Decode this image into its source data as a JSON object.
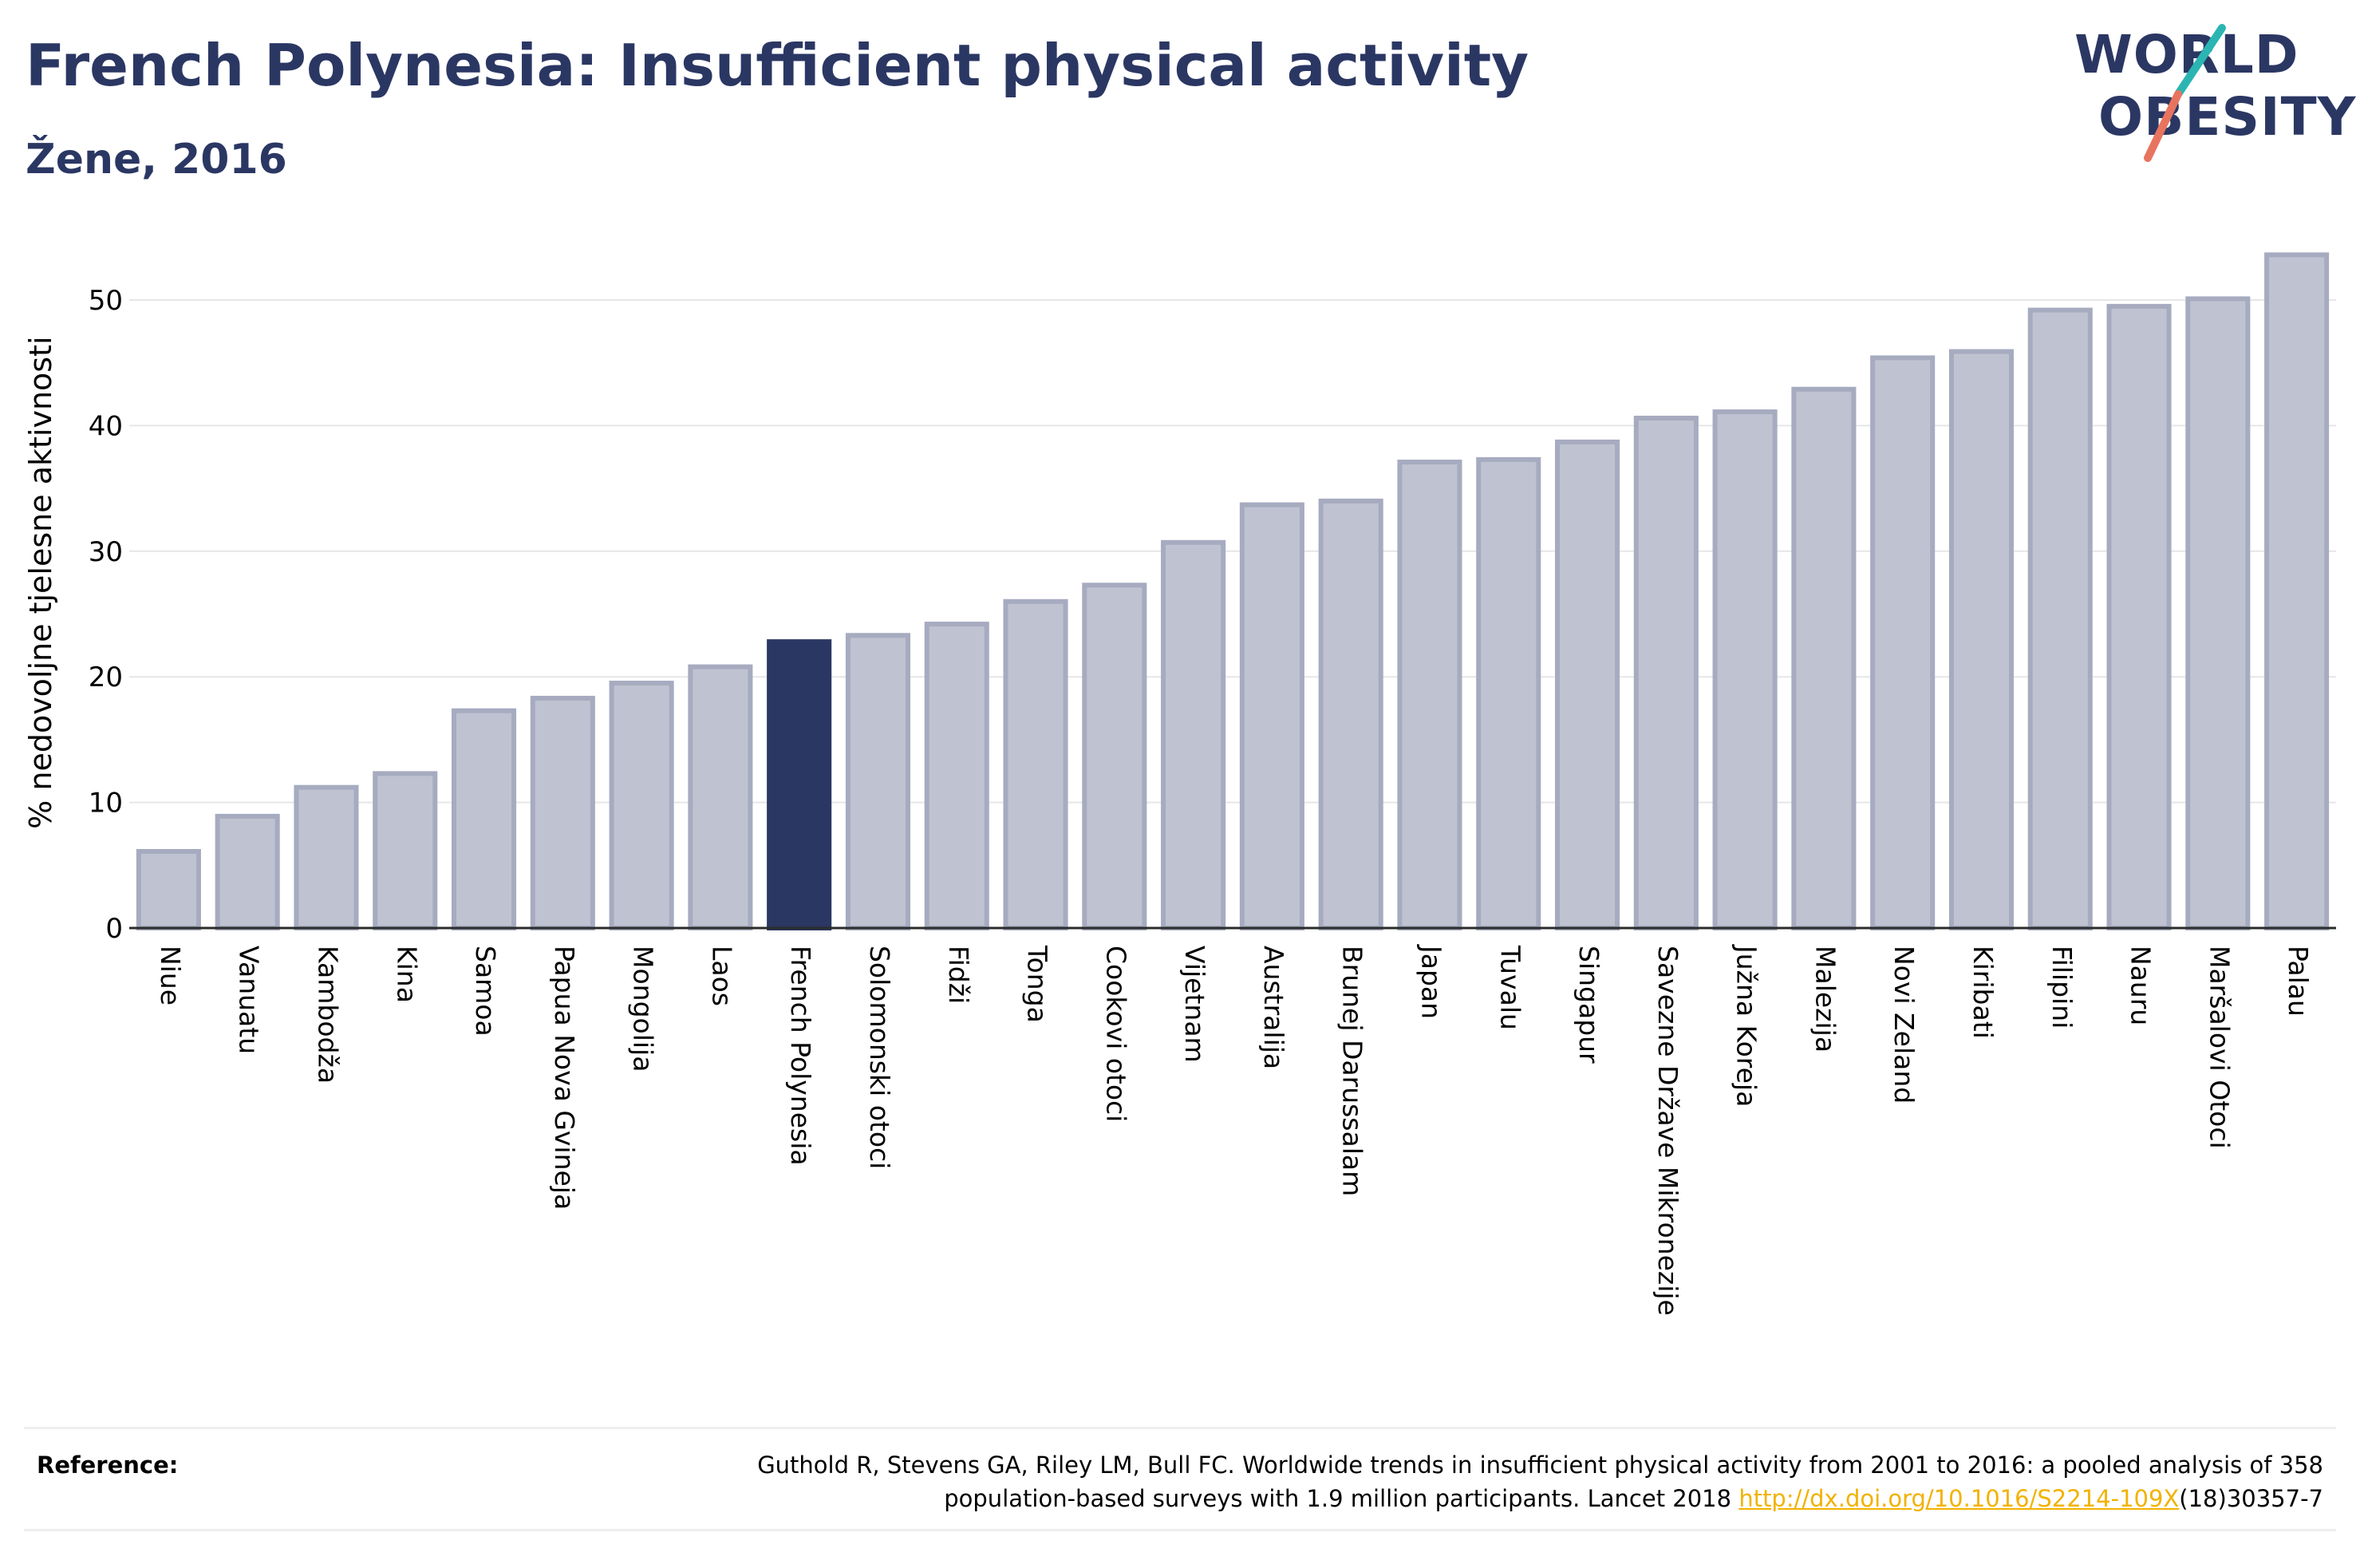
{
  "header": {
    "title": "French Polynesia: Insufficient physical activity",
    "subtitle": "Žene, 2016"
  },
  "logo": {
    "line1": "WORLD",
    "line2": "OBESITY"
  },
  "chart_data": {
    "type": "bar",
    "title": "French Polynesia: Insufficient physical activity",
    "subtitle": "Žene, 2016",
    "ylabel": "% nedovoljne tjelesne aktivnosti",
    "xlabel": "",
    "ylim": [
      0,
      55
    ],
    "yticks": [
      0,
      10,
      20,
      30,
      40,
      50
    ],
    "grid": true,
    "highlight": "French Polynesia",
    "categories": [
      "Niue",
      "Vanuatu",
      "Kambodža",
      "Kina",
      "Samoa",
      "Papua Nova Gvineja",
      "Mongolija",
      "Laos",
      "French Polynesia",
      "Solomonski otoci",
      "Fidži",
      "Tonga",
      "Cookovi otoci",
      "Vijetnam",
      "Australija",
      "Brunej Darussalam",
      "Japan",
      "Tuvalu",
      "Singapur",
      "Savezne Države Mikronezije",
      "Južna Koreja",
      "Malezija",
      "Novi Zeland",
      "Kiribati",
      "Filipini",
      "Nauru",
      "Maršalovi Otoci",
      "Palau"
    ],
    "values": [
      6.1,
      8.9,
      11.2,
      12.3,
      17.3,
      18.3,
      19.5,
      20.8,
      22.8,
      23.3,
      24.2,
      26.0,
      27.3,
      30.7,
      33.7,
      34.0,
      37.1,
      37.3,
      38.7,
      40.6,
      41.1,
      42.9,
      45.4,
      45.9,
      49.2,
      49.5,
      50.1,
      53.6
    ],
    "colors": {
      "bar": "#bfc3d1",
      "bar_border": "#a6abc0",
      "highlight": "#2b3763"
    }
  },
  "reference": {
    "label": "Reference:",
    "text_line1": "Guthold R, Stevens GA, Riley LM, Bull FC. Worldwide trends in insufficient physical activity from 2001 to 2016: a pooled analysis of 358",
    "text_line2_prefix": "population-based surveys with 1.9 million participants. Lancet 2018 ",
    "link": "http://dx.doi.org/10.1016/S2214-109X",
    "text_line2_suffix": "(18)30357-7"
  }
}
